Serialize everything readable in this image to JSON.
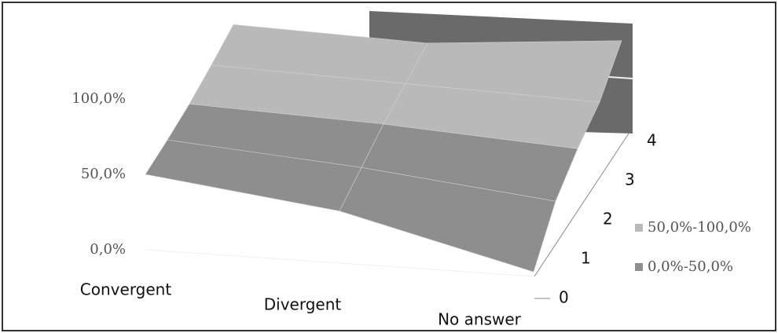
{
  "chart_data": {
    "type": "surface",
    "categories": [
      "Convergent",
      "Divergent",
      "No answer"
    ],
    "series": [
      {
        "name": "0",
        "values": [
          50,
          34,
          2
        ]
      },
      {
        "name": "1",
        "values": [
          52,
          42,
          28
        ]
      },
      {
        "name": "2",
        "values": [
          55,
          50,
          42
        ]
      },
      {
        "name": "3",
        "values": [
          60,
          56,
          52
        ]
      },
      {
        "name": "4",
        "values": [
          66,
          62,
          72
        ]
      }
    ],
    "zlim": [
      0,
      100
    ],
    "zticks": [
      {
        "value": 0,
        "label": "0,0%"
      },
      {
        "value": 50,
        "label": "50,0%"
      },
      {
        "value": 100,
        "label": "100,0%"
      }
    ],
    "bands": [
      {
        "name": "50,0%-100,0%",
        "from": 50,
        "to": 100,
        "color": "#b9b9b9"
      },
      {
        "name": "0,0%-50,0%",
        "from": 0,
        "to": 50,
        "color": "#8e8e8e"
      }
    ]
  }
}
